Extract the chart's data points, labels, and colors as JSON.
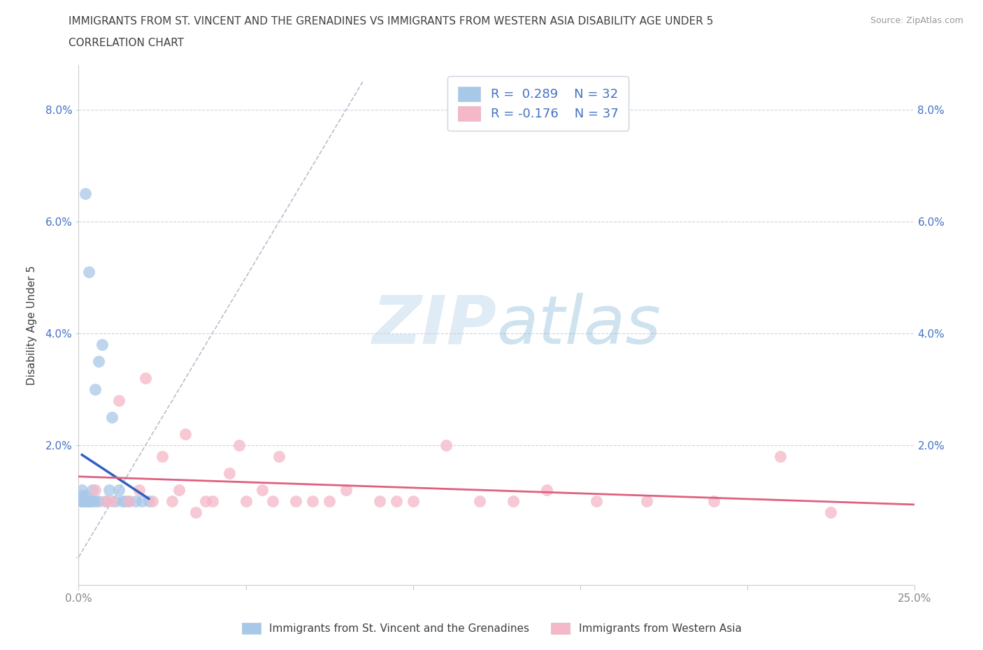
{
  "title_line1": "IMMIGRANTS FROM ST. VINCENT AND THE GRENADINES VS IMMIGRANTS FROM WESTERN ASIA DISABILITY AGE UNDER 5",
  "title_line2": "CORRELATION CHART",
  "source_text": "Source: ZipAtlas.com",
  "watermark_zip": "ZIP",
  "watermark_atlas": "atlas",
  "ylabel": "Disability Age Under 5",
  "xlim": [
    0.0,
    0.25
  ],
  "ylim": [
    -0.005,
    0.088
  ],
  "color_blue": "#a8c8e8",
  "color_pink": "#f4b8c8",
  "line_blue": "#3060c0",
  "line_pink": "#e06080",
  "line_dashed_color": "#b0b8c8",
  "title_color": "#404040",
  "legend_text_color": "#4472c4",
  "ytick_color": "#4472c4",
  "xtick_color": "#888888",
  "legend_label_blue": "Immigrants from St. Vincent and the Grenadines",
  "legend_label_pink": "Immigrants from Western Asia",
  "blue_x": [
    0.001,
    0.001,
    0.001,
    0.001,
    0.002,
    0.002,
    0.002,
    0.003,
    0.003,
    0.003,
    0.004,
    0.004,
    0.005,
    0.005,
    0.006,
    0.006,
    0.007,
    0.008,
    0.009,
    0.01,
    0.011,
    0.012,
    0.013,
    0.014,
    0.015,
    0.017,
    0.019,
    0.021,
    0.001,
    0.002,
    0.003,
    0.002
  ],
  "blue_y": [
    0.01,
    0.011,
    0.01,
    0.012,
    0.01,
    0.011,
    0.065,
    0.01,
    0.01,
    0.051,
    0.01,
    0.012,
    0.01,
    0.03,
    0.035,
    0.01,
    0.038,
    0.01,
    0.012,
    0.025,
    0.01,
    0.012,
    0.01,
    0.01,
    0.01,
    0.01,
    0.01,
    0.01,
    0.01,
    0.01,
    0.01,
    0.01
  ],
  "pink_x": [
    0.008,
    0.012,
    0.015,
    0.018,
    0.02,
    0.022,
    0.025,
    0.028,
    0.03,
    0.032,
    0.035,
    0.038,
    0.04,
    0.045,
    0.048,
    0.05,
    0.055,
    0.058,
    0.06,
    0.065,
    0.07,
    0.075,
    0.08,
    0.09,
    0.095,
    0.1,
    0.11,
    0.12,
    0.13,
    0.14,
    0.155,
    0.17,
    0.19,
    0.21,
    0.225,
    0.005,
    0.01
  ],
  "pink_y": [
    0.01,
    0.028,
    0.01,
    0.012,
    0.032,
    0.01,
    0.018,
    0.01,
    0.012,
    0.022,
    0.008,
    0.01,
    0.01,
    0.015,
    0.02,
    0.01,
    0.012,
    0.01,
    0.018,
    0.01,
    0.01,
    0.01,
    0.012,
    0.01,
    0.01,
    0.01,
    0.02,
    0.01,
    0.01,
    0.012,
    0.01,
    0.01,
    0.01,
    0.018,
    0.008,
    0.012,
    0.01
  ]
}
